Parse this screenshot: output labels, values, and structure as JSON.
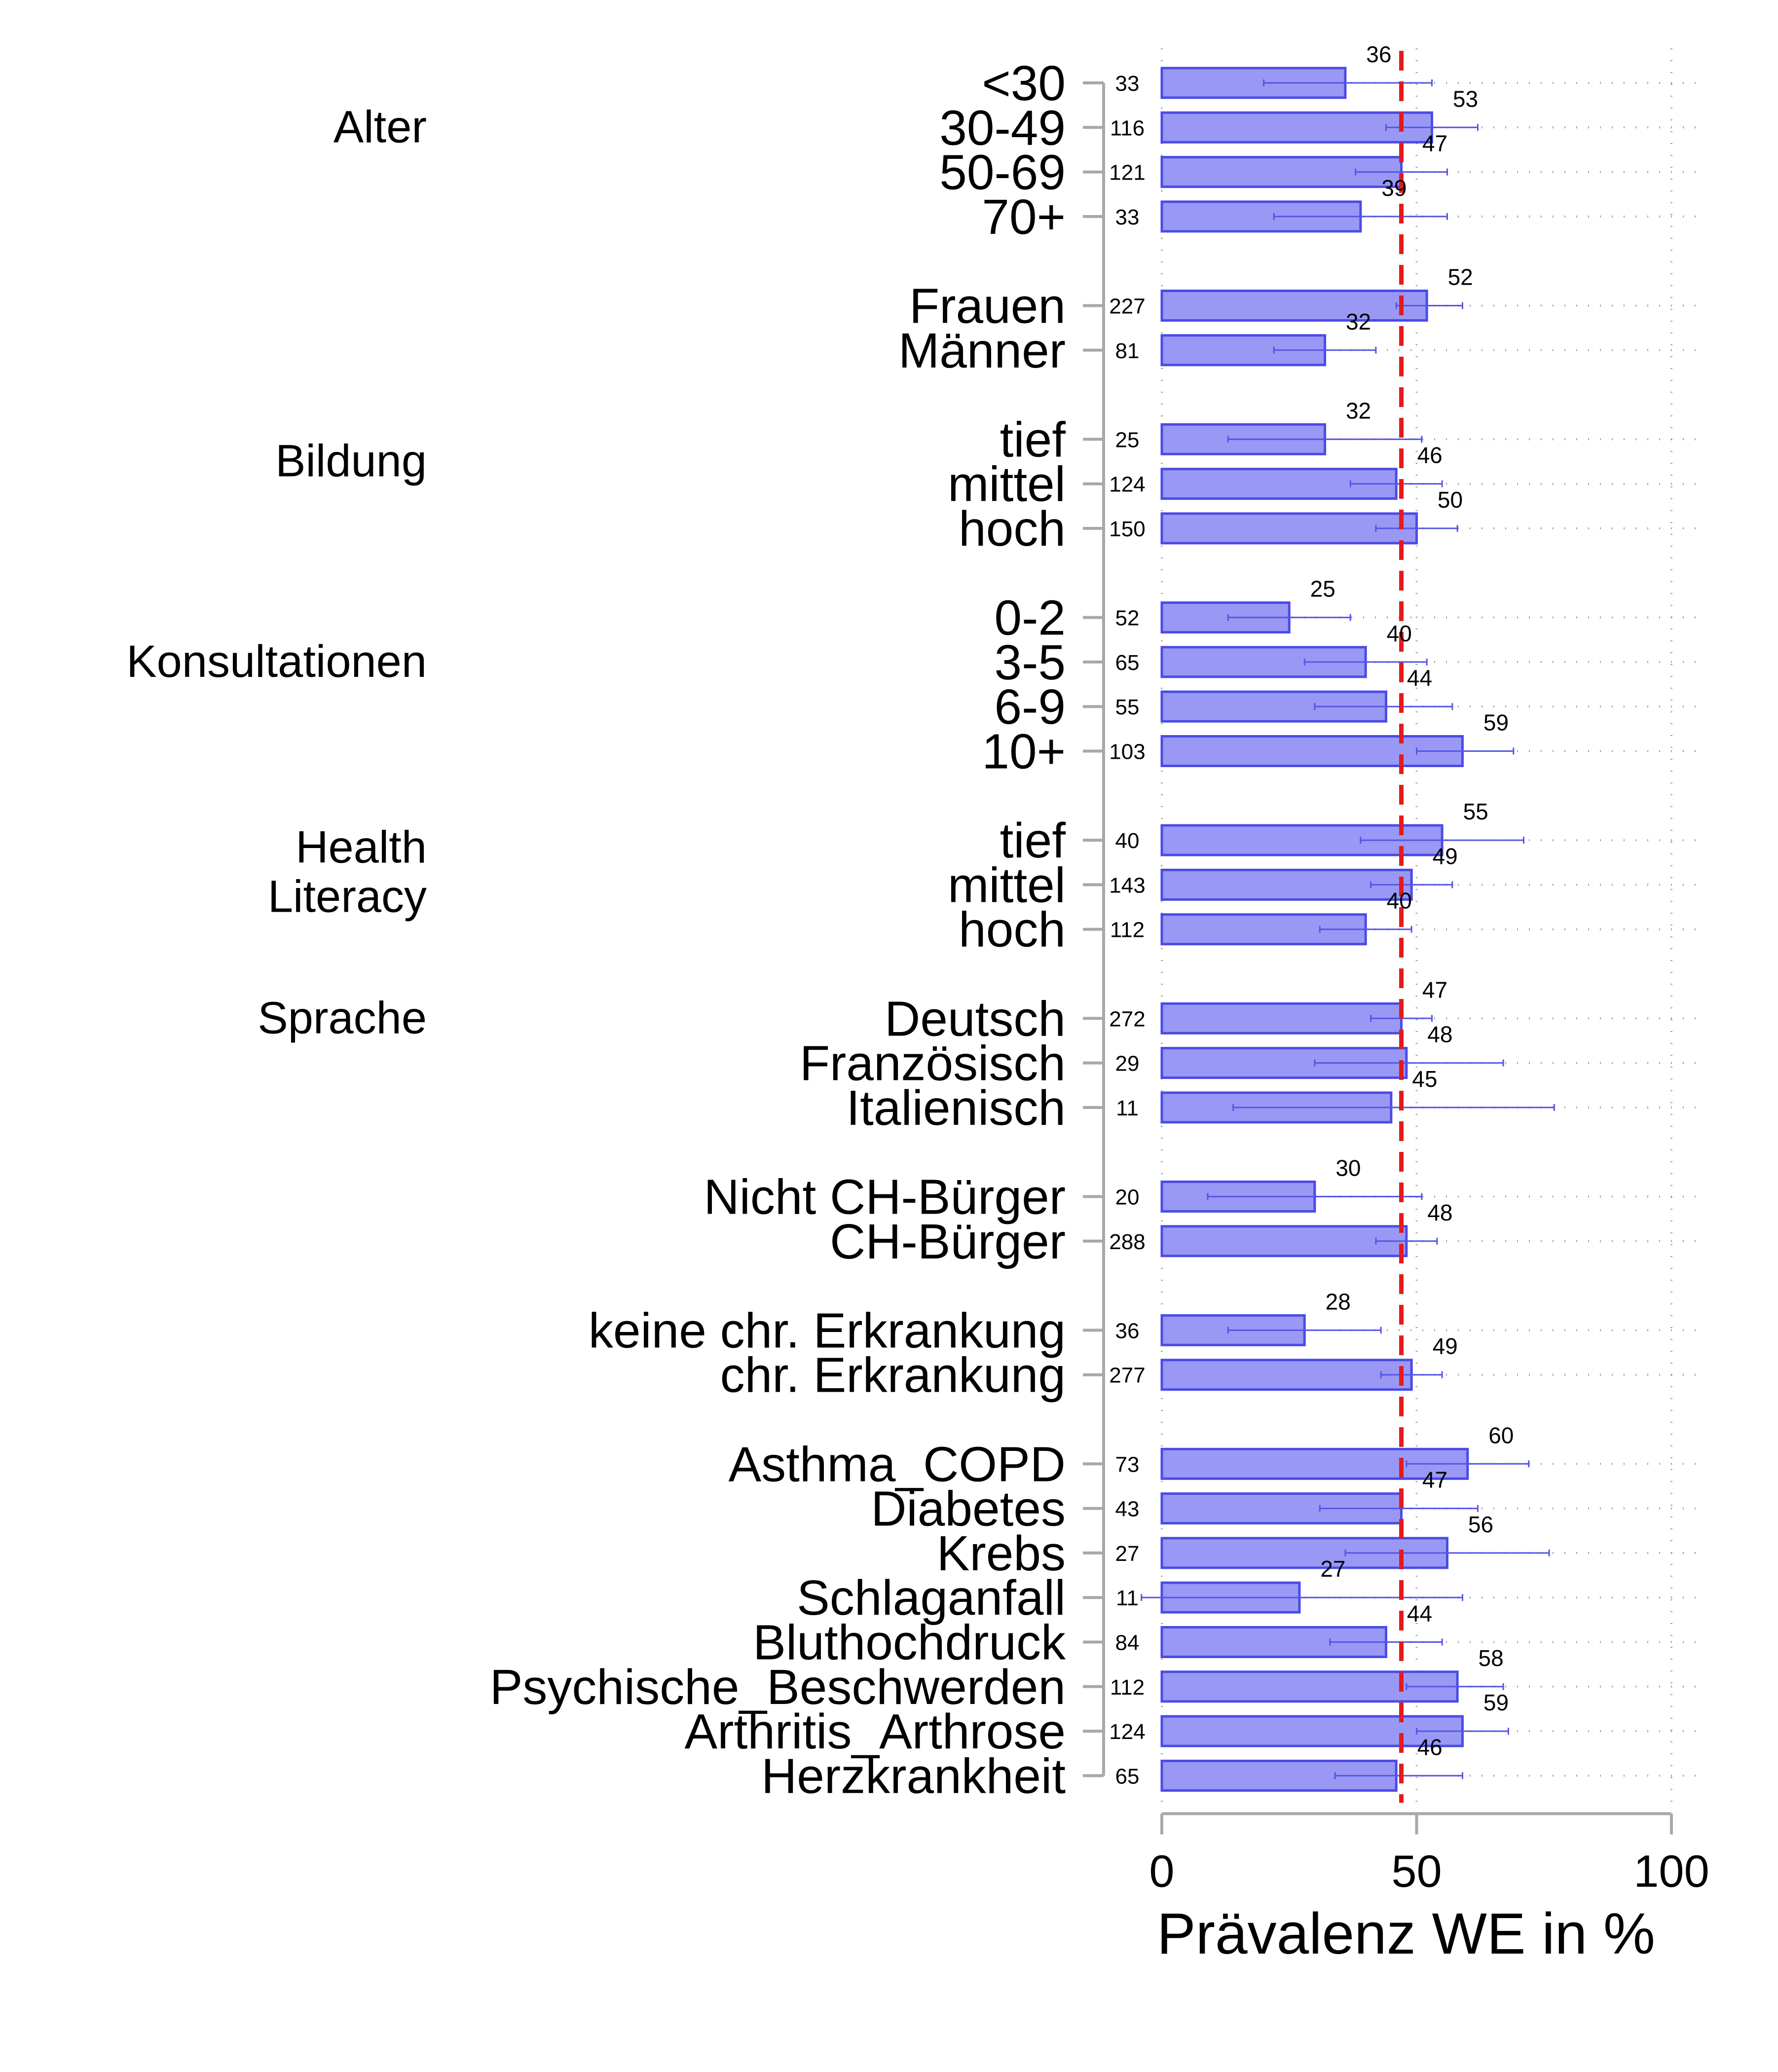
{
  "chart_data": {
    "type": "bar",
    "orientation": "horizontal",
    "xlabel": "Prävalenz WE in %",
    "xlim": [
      0,
      100
    ],
    "xticks": [
      "0",
      "50",
      "100"
    ],
    "reference_line": 47,
    "colors": {
      "bar_fill": "#9999f5",
      "bar_stroke": "#4b4be6",
      "errorbar": "#5555e6",
      "reference": "#e41a1c",
      "axis": "#a8a8a8",
      "grid": "#a0a0a0"
    },
    "groups": [
      {
        "label": "Alter",
        "categories": [
          {
            "label": "<30",
            "n": "33",
            "value": 36,
            "ci": [
              20,
              53
            ]
          },
          {
            "label": "30-49",
            "n": "116",
            "value": 53,
            "ci": [
              44,
              62
            ]
          },
          {
            "label": "50-69",
            "n": "121",
            "value": 47,
            "ci": [
              38,
              56
            ]
          },
          {
            "label": "70+",
            "n": "33",
            "value": 39,
            "ci": [
              22,
              56
            ]
          }
        ]
      },
      {
        "label": "",
        "categories": [
          {
            "label": "Frauen",
            "n": "227",
            "value": 52,
            "ci": [
              46,
              59
            ]
          },
          {
            "label": "Männer",
            "n": "81",
            "value": 32,
            "ci": [
              22,
              42
            ]
          }
        ]
      },
      {
        "label": "Bildung",
        "categories": [
          {
            "label": "tief",
            "n": "25",
            "value": 32,
            "ci": [
              13,
              51
            ]
          },
          {
            "label": "mittel",
            "n": "124",
            "value": 46,
            "ci": [
              37,
              55
            ]
          },
          {
            "label": "hoch",
            "n": "150",
            "value": 50,
            "ci": [
              42,
              58
            ]
          }
        ]
      },
      {
        "label": "Konsultationen",
        "categories": [
          {
            "label": "0-2",
            "n": "52",
            "value": 25,
            "ci": [
              13,
              37
            ]
          },
          {
            "label": "3-5",
            "n": "65",
            "value": 40,
            "ci": [
              28,
              52
            ]
          },
          {
            "label": "6-9",
            "n": "55",
            "value": 44,
            "ci": [
              30,
              57
            ]
          },
          {
            "label": "10+",
            "n": "103",
            "value": 59,
            "ci": [
              50,
              69
            ]
          }
        ]
      },
      {
        "label": "Health Literacy",
        "label_lines": [
          "Health",
          "Literacy"
        ],
        "categories": [
          {
            "label": "tief",
            "n": "40",
            "value": 55,
            "ci": [
              39,
              71
            ]
          },
          {
            "label": "mittel",
            "n": "143",
            "value": 49,
            "ci": [
              41,
              57
            ]
          },
          {
            "label": "hoch",
            "n": "112",
            "value": 40,
            "ci": [
              31,
              49
            ]
          }
        ]
      },
      {
        "label": "Sprache",
        "categories": [
          {
            "label": "Deutsch",
            "n": "272",
            "value": 47,
            "ci": [
              41,
              53
            ]
          },
          {
            "label": "Französisch",
            "n": "29",
            "value": 48,
            "ci": [
              30,
              67
            ]
          },
          {
            "label": "Italienisch",
            "n": "11",
            "value": 45,
            "ci": [
              14,
              77
            ]
          }
        ]
      },
      {
        "label": "",
        "categories": [
          {
            "label": "Nicht CH-Bürger",
            "n": "20",
            "value": 30,
            "ci": [
              9,
              51
            ]
          },
          {
            "label": "CH-Bürger",
            "n": "288",
            "value": 48,
            "ci": [
              42,
              54
            ]
          }
        ]
      },
      {
        "label": "",
        "categories": [
          {
            "label": "keine chr. Erkrankung",
            "n": "36",
            "value": 28,
            "ci": [
              13,
              43
            ]
          },
          {
            "label": "chr. Erkrankung",
            "n": "277",
            "value": 49,
            "ci": [
              43,
              55
            ]
          }
        ]
      },
      {
        "label": "",
        "categories": [
          {
            "label": "Asthma_COPD",
            "n": "73",
            "value": 60,
            "ci": [
              48,
              72
            ]
          },
          {
            "label": "Diabetes",
            "n": "43",
            "value": 47,
            "ci": [
              31,
              62
            ]
          },
          {
            "label": "Krebs",
            "n": "27",
            "value": 56,
            "ci": [
              36,
              76
            ]
          },
          {
            "label": "Schlaganfall",
            "n": "11",
            "value": 27,
            "ci": [
              -4,
              59
            ]
          },
          {
            "label": "Bluthochdruck",
            "n": "84",
            "value": 44,
            "ci": [
              33,
              55
            ]
          },
          {
            "label": "Psychische_Beschwerden",
            "n": "112",
            "value": 58,
            "ci": [
              48,
              67
            ]
          },
          {
            "label": "Arthritis_Arthrose",
            "n": "124",
            "value": 59,
            "ci": [
              50,
              68
            ]
          },
          {
            "label": "Herzkrankheit",
            "n": "65",
            "value": 46,
            "ci": [
              34,
              59
            ]
          }
        ]
      }
    ]
  }
}
